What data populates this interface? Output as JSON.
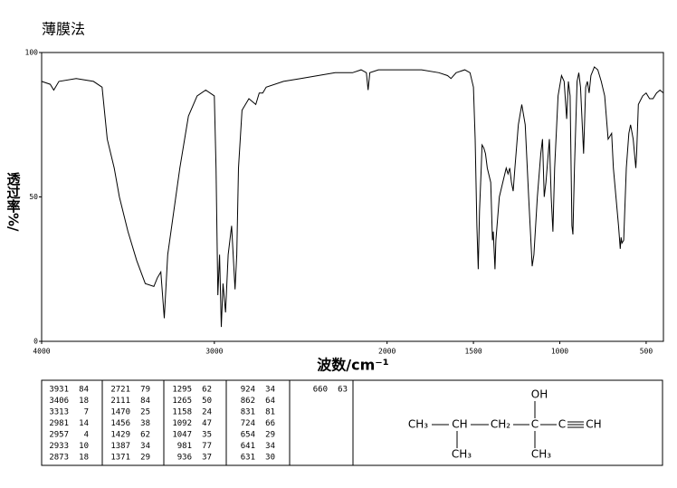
{
  "chart_data": {
    "type": "line",
    "title": "薄膜法",
    "x_label": "波数/cm⁻¹",
    "y_label": "透过率%/",
    "xlim": [
      4000,
      400
    ],
    "ylim": [
      0,
      100
    ],
    "xticks": [
      4000,
      3000,
      2000,
      1500,
      1000,
      500
    ],
    "yticks": [
      0,
      50,
      100
    ],
    "grid": false,
    "x": [
      4000,
      3950,
      3930,
      3900,
      3800,
      3700,
      3650,
      3620,
      3580,
      3550,
      3500,
      3450,
      3400,
      3350,
      3330,
      3310,
      3290,
      3270,
      3200,
      3150,
      3100,
      3050,
      3000,
      2990,
      2980,
      2970,
      2960,
      2950,
      2935,
      2920,
      2900,
      2880,
      2870,
      2860,
      2840,
      2800,
      2760,
      2740,
      2720,
      2700,
      2600,
      2500,
      2400,
      2300,
      2200,
      2150,
      2120,
      2110,
      2100,
      2050,
      2000,
      1900,
      1800,
      1700,
      1650,
      1630,
      1600,
      1550,
      1520,
      1500,
      1490,
      1480,
      1472,
      1465,
      1455,
      1450,
      1440,
      1430,
      1420,
      1400,
      1390,
      1385,
      1375,
      1370,
      1350,
      1330,
      1310,
      1300,
      1290,
      1280,
      1270,
      1260,
      1240,
      1220,
      1200,
      1180,
      1160,
      1150,
      1130,
      1110,
      1100,
      1090,
      1080,
      1060,
      1050,
      1040,
      1030,
      1010,
      990,
      975,
      960,
      950,
      940,
      930,
      924,
      915,
      900,
      890,
      880,
      862,
      850,
      840,
      830,
      820,
      800,
      780,
      760,
      740,
      720,
      700,
      690,
      660,
      650,
      645,
      640,
      630,
      615,
      600,
      590,
      575,
      560,
      555,
      545,
      520,
      500,
      480,
      460,
      440,
      420,
      400
    ],
    "series": [
      {
        "name": "spectrum",
        "color": "#000000",
        "values": [
          90,
          89,
          87,
          90,
          91,
          90,
          88,
          70,
          60,
          50,
          38,
          28,
          20,
          19,
          22,
          24,
          8,
          30,
          60,
          78,
          85,
          87,
          85,
          60,
          16,
          30,
          5,
          20,
          10,
          30,
          40,
          18,
          30,
          60,
          80,
          84,
          82,
          86,
          86,
          88,
          90,
          91,
          92,
          93,
          93,
          94,
          93,
          87,
          93,
          94,
          94,
          94,
          94,
          93,
          92,
          91,
          93,
          94,
          93,
          88,
          70,
          40,
          25,
          45,
          60,
          68,
          67,
          65,
          60,
          55,
          35,
          38,
          25,
          35,
          50,
          55,
          60,
          58,
          60,
          55,
          52,
          60,
          75,
          82,
          75,
          50,
          26,
          30,
          50,
          65,
          70,
          50,
          55,
          70,
          50,
          38,
          60,
          85,
          92,
          90,
          77,
          90,
          85,
          40,
          37,
          60,
          90,
          93,
          88,
          65,
          88,
          90,
          86,
          92,
          95,
          94,
          90,
          85,
          70,
          72,
          60,
          40,
          32,
          36,
          34,
          35,
          60,
          72,
          75,
          70,
          60,
          65,
          82,
          85,
          86,
          84,
          84,
          86,
          87,
          86
        ]
      }
    ]
  },
  "peak_table": {
    "columns": [
      [
        [
          "3931",
          "84"
        ],
        [
          "3406",
          "18"
        ],
        [
          "3313",
          "7"
        ],
        [
          "2981",
          "14"
        ],
        [
          "2957",
          "4"
        ],
        [
          "2933",
          "10"
        ],
        [
          "2873",
          "18"
        ]
      ],
      [
        [
          "2721",
          "79"
        ],
        [
          "2111",
          "84"
        ],
        [
          "1470",
          "25"
        ],
        [
          "1456",
          "38"
        ],
        [
          "1429",
          "62"
        ],
        [
          "1387",
          "34"
        ],
        [
          "1371",
          "29"
        ]
      ],
      [
        [
          "1295",
          "62"
        ],
        [
          "1265",
          "50"
        ],
        [
          "1158",
          "24"
        ],
        [
          "1092",
          "47"
        ],
        [
          "1047",
          "35"
        ],
        [
          "981",
          "77"
        ],
        [
          "936",
          "37"
        ]
      ],
      [
        [
          "924",
          "34"
        ],
        [
          "862",
          "64"
        ],
        [
          "831",
          "81"
        ],
        [
          "724",
          "66"
        ],
        [
          "654",
          "29"
        ],
        [
          "641",
          "34"
        ],
        [
          "631",
          "30"
        ]
      ],
      [
        [
          "660",
          "63"
        ]
      ]
    ]
  },
  "structure": {
    "hydroxyl": "OH",
    "left_methyl": "CH₃",
    "methine": "CH",
    "methylene": "CH₂",
    "quaternary_c": "C",
    "alkyne_c": "C",
    "alkyne_ch": "CH",
    "branch_methyl": "CH₃",
    "quaternary_methyl": "CH₃"
  }
}
